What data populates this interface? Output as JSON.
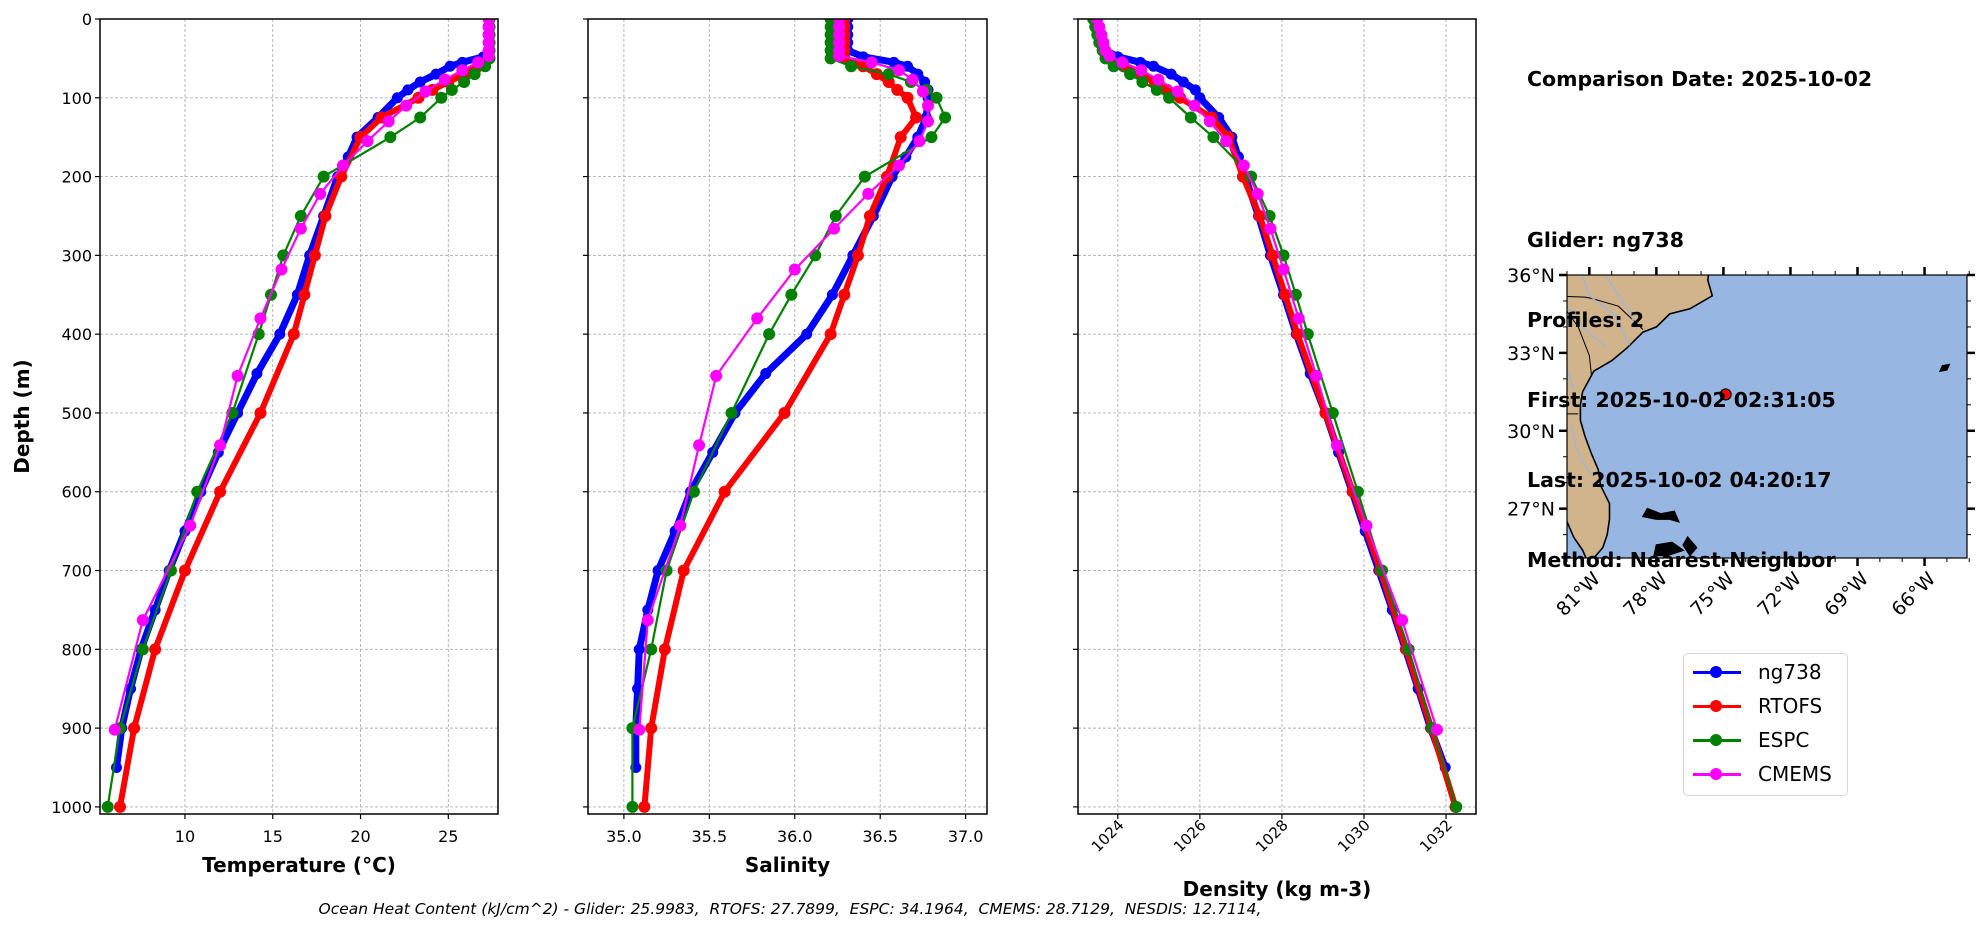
{
  "info": {
    "comparison_date": "Comparison Date: 2025-10-02",
    "glider": "Glider: ng738",
    "profiles": "Profiles: 2",
    "first": "First: 2025-10-02 02:31:05",
    "last": "Last: 2025-10-02 04:20:17",
    "method": "Method: Nearest-Neighbor"
  },
  "legend": [
    {
      "label": "ng738",
      "color": "#0000ff"
    },
    {
      "label": "RTOFS",
      "color": "#ff0000"
    },
    {
      "label": "ESPC",
      "color": "#008000"
    },
    {
      "label": "CMEMS",
      "color": "#ff00ff"
    }
  ],
  "footer": "Ocean Heat Content (kJ/cm^2) - Glider: 25.9983,  RTOFS: 27.7899,  ESPC: 34.1964,  CMEMS: 28.7129,  NESDIS: 12.7114,",
  "map": {
    "lon_range": [
      -82.0,
      -64.1
    ],
    "lat_range": [
      25.1,
      36.0
    ],
    "lat_ticks": [
      {
        "value": 36,
        "label": "36°N"
      },
      {
        "value": 33,
        "label": "33°N"
      },
      {
        "value": 30,
        "label": "30°N"
      },
      {
        "value": 27,
        "label": "27°N"
      }
    ],
    "lon_ticks": [
      {
        "value": -81,
        "label": "81°W"
      },
      {
        "value": -78,
        "label": "78°W"
      },
      {
        "value": -75,
        "label": "75°W"
      },
      {
        "value": -72,
        "label": "72°W"
      },
      {
        "value": -69,
        "label": "69°W"
      },
      {
        "value": -66,
        "label": "66°W"
      }
    ],
    "glider_position": {
      "lon": -74.9,
      "lat": 31.4
    },
    "land_color": "#d2b48c",
    "ocean_color": "#97b6e1"
  },
  "chart_data": [
    {
      "type": "line",
      "id": "temperature",
      "xlabel": "Temperature (°C)",
      "ylabel": "Depth (m)",
      "xlim": [
        5.16,
        27.83
      ],
      "ylim": [
        1009,
        0
      ],
      "grid": true,
      "xticks": [
        {
          "value": 10,
          "label": "10"
        },
        {
          "value": 15,
          "label": "15"
        },
        {
          "value": 20,
          "label": "20"
        },
        {
          "value": 25,
          "label": "25"
        }
      ],
      "yticks": [
        {
          "value": 0,
          "label": "0"
        },
        {
          "value": 100,
          "label": "100"
        },
        {
          "value": 200,
          "label": "200"
        },
        {
          "value": 300,
          "label": "300"
        },
        {
          "value": 400,
          "label": "400"
        },
        {
          "value": 500,
          "label": "500"
        },
        {
          "value": 600,
          "label": "600"
        },
        {
          "value": 700,
          "label": "700"
        },
        {
          "value": 800,
          "label": "800"
        },
        {
          "value": 900,
          "label": "900"
        },
        {
          "value": 1000,
          "label": "1000"
        }
      ],
      "series": [
        {
          "name": "ng738",
          "depth": [
            0,
            10,
            20,
            30,
            40,
            48,
            55,
            60,
            70,
            80,
            90,
            100,
            125,
            150,
            175,
            200,
            250,
            300,
            350,
            400,
            450,
            500,
            550,
            600,
            650,
            700,
            750,
            800,
            850,
            900,
            950
          ],
          "values": [
            27.3,
            27.3,
            27.3,
            27.3,
            27.3,
            27.0,
            25.8,
            25.1,
            24.3,
            23.4,
            22.7,
            22.1,
            21.0,
            19.8,
            19.3,
            18.7,
            17.9,
            17.1,
            16.4,
            15.4,
            14.1,
            13.0,
            11.9,
            10.9,
            10.0,
            9.1,
            8.3,
            7.5,
            6.9,
            6.4,
            6.1
          ]
        },
        {
          "name": "RTOFS",
          "depth": [
            0,
            10,
            20,
            30,
            40,
            50,
            60,
            70,
            80,
            90,
            100,
            125,
            150,
            200,
            250,
            300,
            350,
            400,
            500,
            600,
            700,
            800,
            900,
            1000
          ],
          "values": [
            27.3,
            27.3,
            27.3,
            27.3,
            27.3,
            27.3,
            26.7,
            25.9,
            25.0,
            24.1,
            23.3,
            21.2,
            20.0,
            18.9,
            18.0,
            17.4,
            16.8,
            16.2,
            14.3,
            12.0,
            10.0,
            8.3,
            7.1,
            6.3
          ]
        },
        {
          "name": "ESPC",
          "depth": [
            0,
            10,
            20,
            30,
            40,
            50,
            60,
            70,
            80,
            90,
            100,
            125,
            150,
            200,
            250,
            300,
            350,
            400,
            500,
            600,
            700,
            800,
            900,
            1000
          ],
          "values": [
            27.35,
            27.35,
            27.35,
            27.35,
            27.35,
            27.35,
            27.1,
            26.5,
            25.9,
            25.2,
            24.6,
            23.4,
            21.7,
            17.9,
            16.6,
            15.6,
            14.9,
            14.2,
            12.7,
            10.7,
            9.2,
            7.6,
            6.3,
            5.6
          ]
        },
        {
          "name": "CMEMS",
          "depth": [
            0,
            10,
            20,
            30,
            40,
            47,
            55,
            65,
            77,
            92,
            110,
            130,
            155,
            186,
            222,
            266,
            318,
            380,
            453,
            541,
            643,
            763,
            902
          ],
          "values": [
            27.3,
            27.3,
            27.3,
            27.3,
            27.3,
            27.3,
            26.7,
            25.8,
            24.8,
            23.7,
            22.6,
            21.6,
            20.4,
            19.0,
            17.7,
            16.6,
            15.5,
            14.3,
            13.0,
            12.0,
            10.3,
            7.6,
            6.0
          ]
        }
      ]
    },
    {
      "type": "line",
      "id": "salinity",
      "xlabel": "Salinity",
      "ylabel": "",
      "xlim": [
        34.79,
        37.125
      ],
      "ylim": [
        1009,
        0
      ],
      "grid": true,
      "xticks": [
        {
          "value": 35.0,
          "label": "35.0"
        },
        {
          "value": 35.5,
          "label": "35.5"
        },
        {
          "value": 36.0,
          "label": "36.0"
        },
        {
          "value": 36.5,
          "label": "36.5"
        },
        {
          "value": 37.0,
          "label": "37.0"
        }
      ],
      "series": [
        {
          "name": "ng738",
          "depth": [
            0,
            10,
            20,
            30,
            40,
            48,
            55,
            60,
            70,
            80,
            90,
            100,
            125,
            150,
            175,
            200,
            250,
            300,
            350,
            400,
            450,
            500,
            550,
            600,
            650,
            700,
            750,
            800,
            850,
            900,
            950
          ],
          "values": [
            36.31,
            36.31,
            36.31,
            36.31,
            36.31,
            36.4,
            36.58,
            36.66,
            36.72,
            36.76,
            36.78,
            36.78,
            36.77,
            36.72,
            36.65,
            36.57,
            36.46,
            36.34,
            36.22,
            36.07,
            35.83,
            35.65,
            35.52,
            35.39,
            35.3,
            35.2,
            35.14,
            35.09,
            35.08,
            35.07,
            35.07
          ]
        },
        {
          "name": "RTOFS",
          "depth": [
            0,
            10,
            20,
            30,
            40,
            50,
            60,
            70,
            80,
            90,
            100,
            125,
            150,
            200,
            250,
            300,
            350,
            400,
            500,
            600,
            700,
            800,
            900,
            1000
          ],
          "values": [
            36.29,
            36.29,
            36.29,
            36.29,
            36.29,
            36.29,
            36.4,
            36.48,
            36.55,
            36.6,
            36.66,
            36.71,
            36.62,
            36.54,
            36.44,
            36.37,
            36.29,
            36.21,
            35.94,
            35.59,
            35.35,
            35.24,
            35.16,
            35.12
          ]
        },
        {
          "name": "ESPC",
          "depth": [
            0,
            10,
            20,
            30,
            40,
            50,
            60,
            70,
            80,
            90,
            100,
            125,
            150,
            200,
            250,
            300,
            350,
            400,
            500,
            600,
            700,
            800,
            900,
            1000
          ],
          "values": [
            36.21,
            36.21,
            36.21,
            36.21,
            36.21,
            36.21,
            36.33,
            36.55,
            36.68,
            36.77,
            36.83,
            36.88,
            36.8,
            36.41,
            36.24,
            36.12,
            35.98,
            35.85,
            35.63,
            35.41,
            35.25,
            35.16,
            35.05,
            35.05
          ]
        },
        {
          "name": "CMEMS",
          "depth": [
            0,
            10,
            20,
            30,
            40,
            47,
            55,
            65,
            77,
            92,
            110,
            130,
            155,
            186,
            222,
            266,
            318,
            380,
            453,
            541,
            643,
            763,
            902
          ],
          "values": [
            36.26,
            36.26,
            36.26,
            36.26,
            36.26,
            36.26,
            36.45,
            36.61,
            36.69,
            36.75,
            36.78,
            36.78,
            36.73,
            36.61,
            36.43,
            36.23,
            36.0,
            35.78,
            35.54,
            35.44,
            35.33,
            35.14,
            35.09
          ]
        }
      ]
    },
    {
      "type": "line",
      "id": "density",
      "xlabel": "Density (kg m-3)",
      "ylabel": "",
      "xlim": [
        1023.03,
        1032.73
      ],
      "ylim": [
        1009,
        0
      ],
      "grid": true,
      "xticks": [
        {
          "value": 1024,
          "label": "1024"
        },
        {
          "value": 1026,
          "label": "1026"
        },
        {
          "value": 1028,
          "label": "1028"
        },
        {
          "value": 1030,
          "label": "1030"
        },
        {
          "value": 1032,
          "label": "1032"
        }
      ],
      "series": [
        {
          "name": "ng738",
          "depth": [
            0,
            10,
            20,
            30,
            40,
            48,
            55,
            60,
            70,
            80,
            90,
            100,
            125,
            150,
            175,
            200,
            250,
            300,
            350,
            400,
            450,
            500,
            550,
            600,
            650,
            700,
            750,
            800,
            850,
            900,
            950
          ],
          "values": [
            1023.45,
            1023.5,
            1023.55,
            1023.6,
            1023.7,
            1024.0,
            1024.55,
            1024.87,
            1025.3,
            1025.6,
            1025.89,
            1026.0,
            1026.46,
            1026.78,
            1026.94,
            1027.1,
            1027.43,
            1027.72,
            1028.04,
            1028.35,
            1028.69,
            1029.06,
            1029.38,
            1029.71,
            1030.03,
            1030.36,
            1030.69,
            1031.01,
            1031.32,
            1031.62,
            1031.98
          ]
        },
        {
          "name": "RTOFS",
          "depth": [
            0,
            10,
            20,
            30,
            40,
            50,
            60,
            70,
            80,
            90,
            100,
            125,
            150,
            200,
            250,
            300,
            350,
            400,
            500,
            600,
            700,
            800,
            900,
            1000
          ],
          "values": [
            1023.45,
            1023.5,
            1023.55,
            1023.6,
            1023.68,
            1023.75,
            1024.14,
            1024.55,
            1024.9,
            1025.2,
            1025.52,
            1026.29,
            1026.7,
            1027.05,
            1027.46,
            1027.77,
            1028.08,
            1028.38,
            1029.06,
            1029.73,
            1030.4,
            1031.03,
            1031.64,
            1032.23
          ]
        },
        {
          "name": "ESPC",
          "depth": [
            0,
            10,
            20,
            30,
            40,
            50,
            60,
            70,
            80,
            90,
            100,
            125,
            150,
            200,
            250,
            300,
            350,
            400,
            500,
            600,
            700,
            800,
            900,
            1000
          ],
          "values": [
            1023.4,
            1023.45,
            1023.5,
            1023.55,
            1023.63,
            1023.7,
            1023.9,
            1024.3,
            1024.6,
            1024.95,
            1025.25,
            1025.78,
            1026.33,
            1027.25,
            1027.7,
            1028.04,
            1028.34,
            1028.63,
            1029.24,
            1029.85,
            1030.44,
            1031.09,
            1031.66,
            1032.25
          ]
        },
        {
          "name": "CMEMS",
          "depth": [
            0,
            10,
            20,
            30,
            40,
            47,
            55,
            65,
            77,
            92,
            110,
            130,
            155,
            186,
            222,
            266,
            318,
            380,
            453,
            541,
            643,
            763,
            902
          ],
          "values": [
            1023.5,
            1023.55,
            1023.6,
            1023.65,
            1023.7,
            1023.8,
            1024.11,
            1024.57,
            1024.99,
            1025.46,
            1025.87,
            1026.24,
            1026.64,
            1027.07,
            1027.41,
            1027.72,
            1028.04,
            1028.41,
            1028.84,
            1029.34,
            1030.06,
            1030.93,
            1031.78
          ]
        }
      ]
    }
  ]
}
